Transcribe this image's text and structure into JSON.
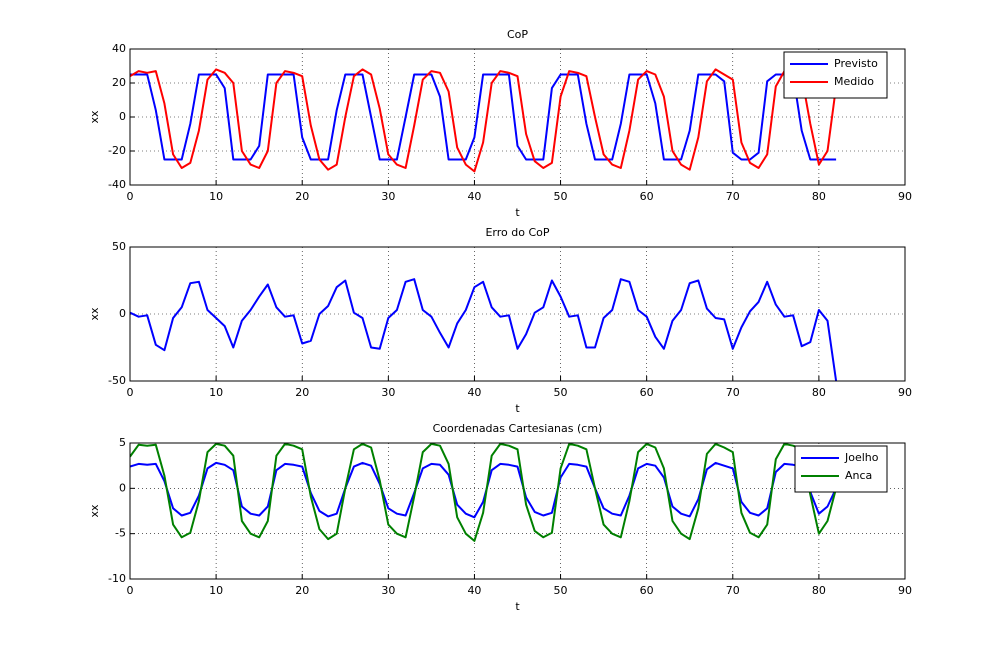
{
  "chart_data": [
    {
      "type": "line",
      "title": "CoP",
      "xlabel": "t",
      "ylabel": "xx",
      "x": [
        0,
        1,
        2,
        3,
        4,
        5,
        6,
        7,
        8,
        9,
        10,
        11,
        12,
        13,
        14,
        15,
        16,
        17,
        18,
        19,
        20,
        21,
        22,
        23,
        24,
        25,
        26,
        27,
        28,
        29,
        30,
        31,
        32,
        33,
        34,
        35,
        36,
        37,
        38,
        39,
        40,
        41,
        42,
        43,
        44,
        45,
        46,
        47,
        48,
        49,
        50,
        51,
        52,
        53,
        54,
        55,
        56,
        57,
        58,
        59,
        60,
        61,
        62,
        63,
        64,
        65,
        66,
        67,
        68,
        69,
        70,
        71,
        72,
        73,
        74,
        75,
        76,
        77,
        78,
        79,
        80,
        81,
        82
      ],
      "series": [
        {
          "name": "Previsto",
          "color": "#0000ff",
          "values": [
            25,
            25,
            25,
            4,
            -25,
            -25,
            -25,
            -4,
            25,
            25,
            25,
            17,
            -25,
            -25,
            -25,
            -17,
            25,
            25,
            25,
            25,
            -12,
            -25,
            -25,
            -25,
            4,
            25,
            25,
            25,
            0,
            -25,
            -25,
            -25,
            0,
            25,
            25,
            25,
            12,
            -25,
            -25,
            -25,
            -12,
            25,
            25,
            25,
            25,
            -17,
            -25,
            -25,
            -25,
            17,
            25,
            25,
            25,
            -4,
            -25,
            -25,
            -25,
            -4,
            25,
            25,
            25,
            8,
            -25,
            -25,
            -25,
            -8,
            25,
            25,
            25,
            21,
            -21,
            -25,
            -25,
            -21,
            21,
            25,
            25,
            25,
            -8,
            -25,
            -25,
            -25,
            -25
          ]
        },
        {
          "name": "Medido",
          "color": "#ff0000",
          "values": [
            24,
            27,
            26,
            27,
            8,
            -22,
            -30,
            -27,
            -8,
            22,
            28,
            26,
            20,
            -20,
            -28,
            -30,
            -20,
            20,
            27,
            26,
            24,
            -5,
            -25,
            -31,
            -28,
            0,
            24,
            28,
            25,
            5,
            -22,
            -28,
            -30,
            -5,
            22,
            27,
            26,
            15,
            -18,
            -28,
            -32,
            -15,
            20,
            27,
            26,
            24,
            -10,
            -26,
            -30,
            -27,
            12,
            27,
            26,
            24,
            0,
            -22,
            -28,
            -30,
            -8,
            22,
            27,
            25,
            12,
            -20,
            -28,
            -31,
            -12,
            21,
            28,
            25,
            22,
            -15,
            -27,
            -30,
            -22,
            18,
            27,
            26,
            24,
            -4,
            -28,
            -20,
            18
          ]
        }
      ],
      "xlim": [
        0,
        90
      ],
      "xticks": [
        0,
        10,
        20,
        30,
        40,
        50,
        60,
        70,
        80,
        90
      ],
      "ylim": [
        -40,
        40
      ],
      "yticks": [
        -40,
        -20,
        0,
        20,
        40
      ],
      "grid": true,
      "legend": "upper right"
    },
    {
      "type": "line",
      "title": "Erro do CoP",
      "xlabel": "t",
      "ylabel": "xx",
      "x": [
        0,
        1,
        2,
        3,
        4,
        5,
        6,
        7,
        8,
        9,
        10,
        11,
        12,
        13,
        14,
        15,
        16,
        17,
        18,
        19,
        20,
        21,
        22,
        23,
        24,
        25,
        26,
        27,
        28,
        29,
        30,
        31,
        32,
        33,
        34,
        35,
        36,
        37,
        38,
        39,
        40,
        41,
        42,
        43,
        44,
        45,
        46,
        47,
        48,
        49,
        50,
        51,
        52,
        53,
        54,
        55,
        56,
        57,
        58,
        59,
        60,
        61,
        62,
        63,
        64,
        65,
        66,
        67,
        68,
        69,
        70,
        71,
        72,
        73,
        74,
        75,
        76,
        77,
        78,
        79,
        80,
        81,
        82
      ],
      "series": [
        {
          "color": "#0000ff",
          "values": [
            1,
            -2,
            -1,
            -23,
            -27,
            -3,
            5,
            23,
            24,
            3,
            -3,
            -9,
            -25,
            -5,
            3,
            13,
            22,
            5,
            -2,
            -1,
            -22,
            -20,
            0,
            6,
            20,
            25,
            1,
            -3,
            -25,
            -26,
            -3,
            3,
            24,
            26,
            3,
            -2,
            -14,
            -25,
            -7,
            3,
            20,
            24,
            5,
            -2,
            -1,
            -26,
            -15,
            1,
            5,
            25,
            13,
            -2,
            -1,
            -25,
            -25,
            -3,
            3,
            26,
            24,
            3,
            -2,
            -17,
            -26,
            -5,
            3,
            23,
            25,
            4,
            -3,
            -4,
            -26,
            -10,
            2,
            9,
            24,
            7,
            -2,
            -1,
            -24,
            -21,
            3,
            -5,
            -50
          ]
        }
      ],
      "xlim": [
        0,
        90
      ],
      "xticks": [
        0,
        10,
        20,
        30,
        40,
        50,
        60,
        70,
        80,
        90
      ],
      "ylim": [
        -50,
        50
      ],
      "yticks": [
        -50,
        0,
        50
      ],
      "grid": true
    },
    {
      "type": "line",
      "title": "Coordenadas Cartesianas (cm)",
      "xlabel": "t",
      "ylabel": "xx",
      "x": [
        0,
        1,
        2,
        3,
        4,
        5,
        6,
        7,
        8,
        9,
        10,
        11,
        12,
        13,
        14,
        15,
        16,
        17,
        18,
        19,
        20,
        21,
        22,
        23,
        24,
        25,
        26,
        27,
        28,
        29,
        30,
        31,
        32,
        33,
        34,
        35,
        36,
        37,
        38,
        39,
        40,
        41,
        42,
        43,
        44,
        45,
        46,
        47,
        48,
        49,
        50,
        51,
        52,
        53,
        54,
        55,
        56,
        57,
        58,
        59,
        60,
        61,
        62,
        63,
        64,
        65,
        66,
        67,
        68,
        69,
        70,
        71,
        72,
        73,
        74,
        75,
        76,
        77,
        78,
        79,
        80,
        81,
        82
      ],
      "series": [
        {
          "name": "Joelho",
          "color": "#0000ff",
          "values": [
            2.4,
            2.7,
            2.6,
            2.7,
            0.8,
            -2.2,
            -3,
            -2.7,
            -0.8,
            2.2,
            2.8,
            2.6,
            2,
            -2,
            -2.8,
            -3,
            -2,
            2,
            2.7,
            2.6,
            2.4,
            -0.5,
            -2.5,
            -3.1,
            -2.8,
            0,
            2.4,
            2.8,
            2.5,
            0.5,
            -2.2,
            -2.8,
            -3,
            -0.5,
            2.2,
            2.7,
            2.6,
            1.5,
            -1.8,
            -2.8,
            -3.2,
            -1.5,
            2,
            2.7,
            2.6,
            2.4,
            -1,
            -2.6,
            -3,
            -2.7,
            1.2,
            2.7,
            2.6,
            2.4,
            0,
            -2.2,
            -2.8,
            -3,
            -0.8,
            2.2,
            2.7,
            2.5,
            1.2,
            -2,
            -2.8,
            -3.1,
            -1.2,
            2.1,
            2.8,
            2.5,
            2.2,
            -1.5,
            -2.7,
            -3,
            -2.2,
            1.8,
            2.7,
            2.6,
            2.4,
            -0.4,
            -2.8,
            -2,
            0
          ]
        },
        {
          "name": "Anca",
          "color": "#008000",
          "values": [
            3.5,
            4.8,
            4.7,
            4.8,
            1.4,
            -4,
            -5.4,
            -4.9,
            -1.4,
            4,
            4.9,
            4.7,
            3.6,
            -3.6,
            -5,
            -5.4,
            -3.6,
            3.6,
            4.9,
            4.7,
            4.3,
            -0.9,
            -4.5,
            -5.6,
            -5,
            0,
            4.3,
            4.9,
            4.5,
            0.9,
            -4,
            -5,
            -5.4,
            -0.9,
            4,
            4.9,
            4.7,
            2.7,
            -3.2,
            -5,
            -5.8,
            -2.7,
            3.6,
            4.9,
            4.7,
            4.3,
            -1.8,
            -4.7,
            -5.4,
            -4.9,
            2.2,
            4.9,
            4.7,
            4.3,
            0,
            -4,
            -5,
            -5.4,
            -1.4,
            4,
            4.9,
            4.5,
            2.2,
            -3.6,
            -5,
            -5.6,
            -2.2,
            3.8,
            4.9,
            4.5,
            4,
            -2.7,
            -4.9,
            -5.4,
            -4,
            3.2,
            4.9,
            4.7,
            4.3,
            -0.7,
            -5,
            -3.6,
            0
          ]
        }
      ],
      "xlim": [
        0,
        90
      ],
      "xticks": [
        0,
        10,
        20,
        30,
        40,
        50,
        60,
        70,
        80,
        90
      ],
      "ylim": [
        -10,
        5
      ],
      "yticks": [
        -10,
        -5,
        0,
        5
      ],
      "grid": true,
      "legend": "upper right"
    }
  ]
}
